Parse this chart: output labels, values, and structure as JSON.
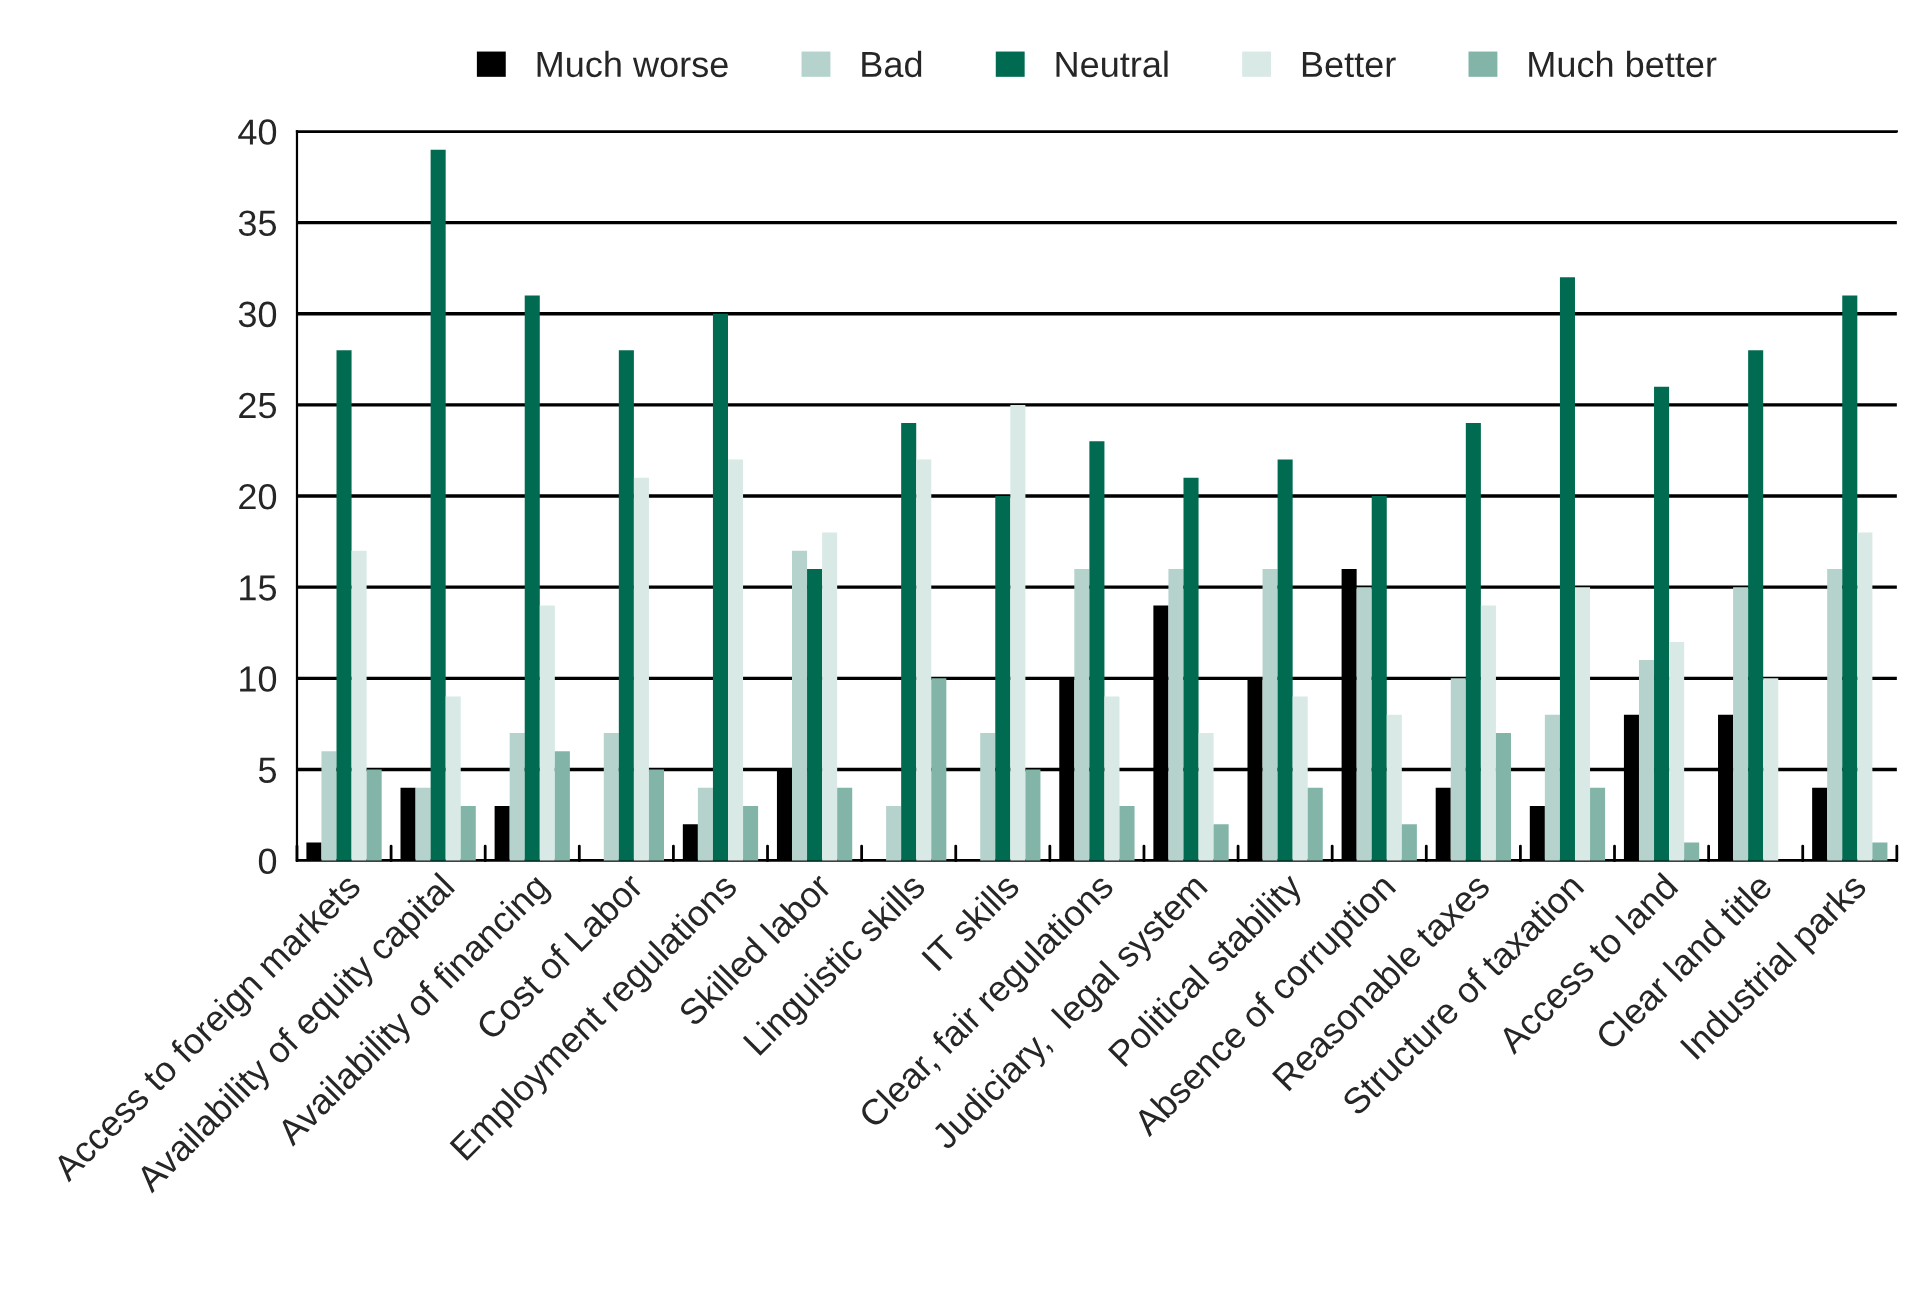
{
  "chart_data": {
    "type": "bar",
    "categories": [
      "Access to foreign markets",
      "Availability of equity capital",
      "Availability of financing",
      "Cost of Labor",
      "Employment regulations",
      "Skilled labor",
      "Linguistic skills",
      "IT skills",
      "Clear, fair regulations",
      "Judiciary,  legal system",
      "Political stability",
      "Absence of corruption",
      "Reasonable taxes",
      "Structure of taxation",
      "Access to land",
      "Clear land title",
      "Industrial parks"
    ],
    "series": [
      {
        "name": "Much worse",
        "color": "#000000",
        "values": [
          1,
          4,
          3,
          0,
          2,
          5,
          0,
          0,
          10,
          14,
          10,
          16,
          4,
          3,
          8,
          8,
          4
        ]
      },
      {
        "name": "Bad",
        "color": "#b5d3cc",
        "values": [
          6,
          4,
          7,
          7,
          4,
          17,
          3,
          7,
          16,
          16,
          16,
          15,
          10,
          8,
          11,
          15,
          16
        ]
      },
      {
        "name": "Neutral",
        "color": "#006b50",
        "values": [
          28,
          39,
          31,
          28,
          30,
          16,
          24,
          20,
          23,
          21,
          22,
          20,
          24,
          32,
          26,
          28,
          31
        ]
      },
      {
        "name": "Better",
        "color": "#d9eae6",
        "values": [
          17,
          9,
          14,
          21,
          22,
          18,
          22,
          25,
          9,
          7,
          9,
          8,
          14,
          15,
          12,
          10,
          18
        ]
      },
      {
        "name": "Much better",
        "color": "#82b5a8",
        "values": [
          5,
          3,
          6,
          5,
          3,
          4,
          10,
          5,
          3,
          2,
          4,
          2,
          7,
          4,
          1,
          0,
          1
        ]
      }
    ],
    "ylim": [
      0,
      40
    ],
    "yticks": [
      0,
      5,
      10,
      15,
      20,
      25,
      30,
      35,
      40
    ],
    "grid": "y",
    "legend": "top"
  }
}
